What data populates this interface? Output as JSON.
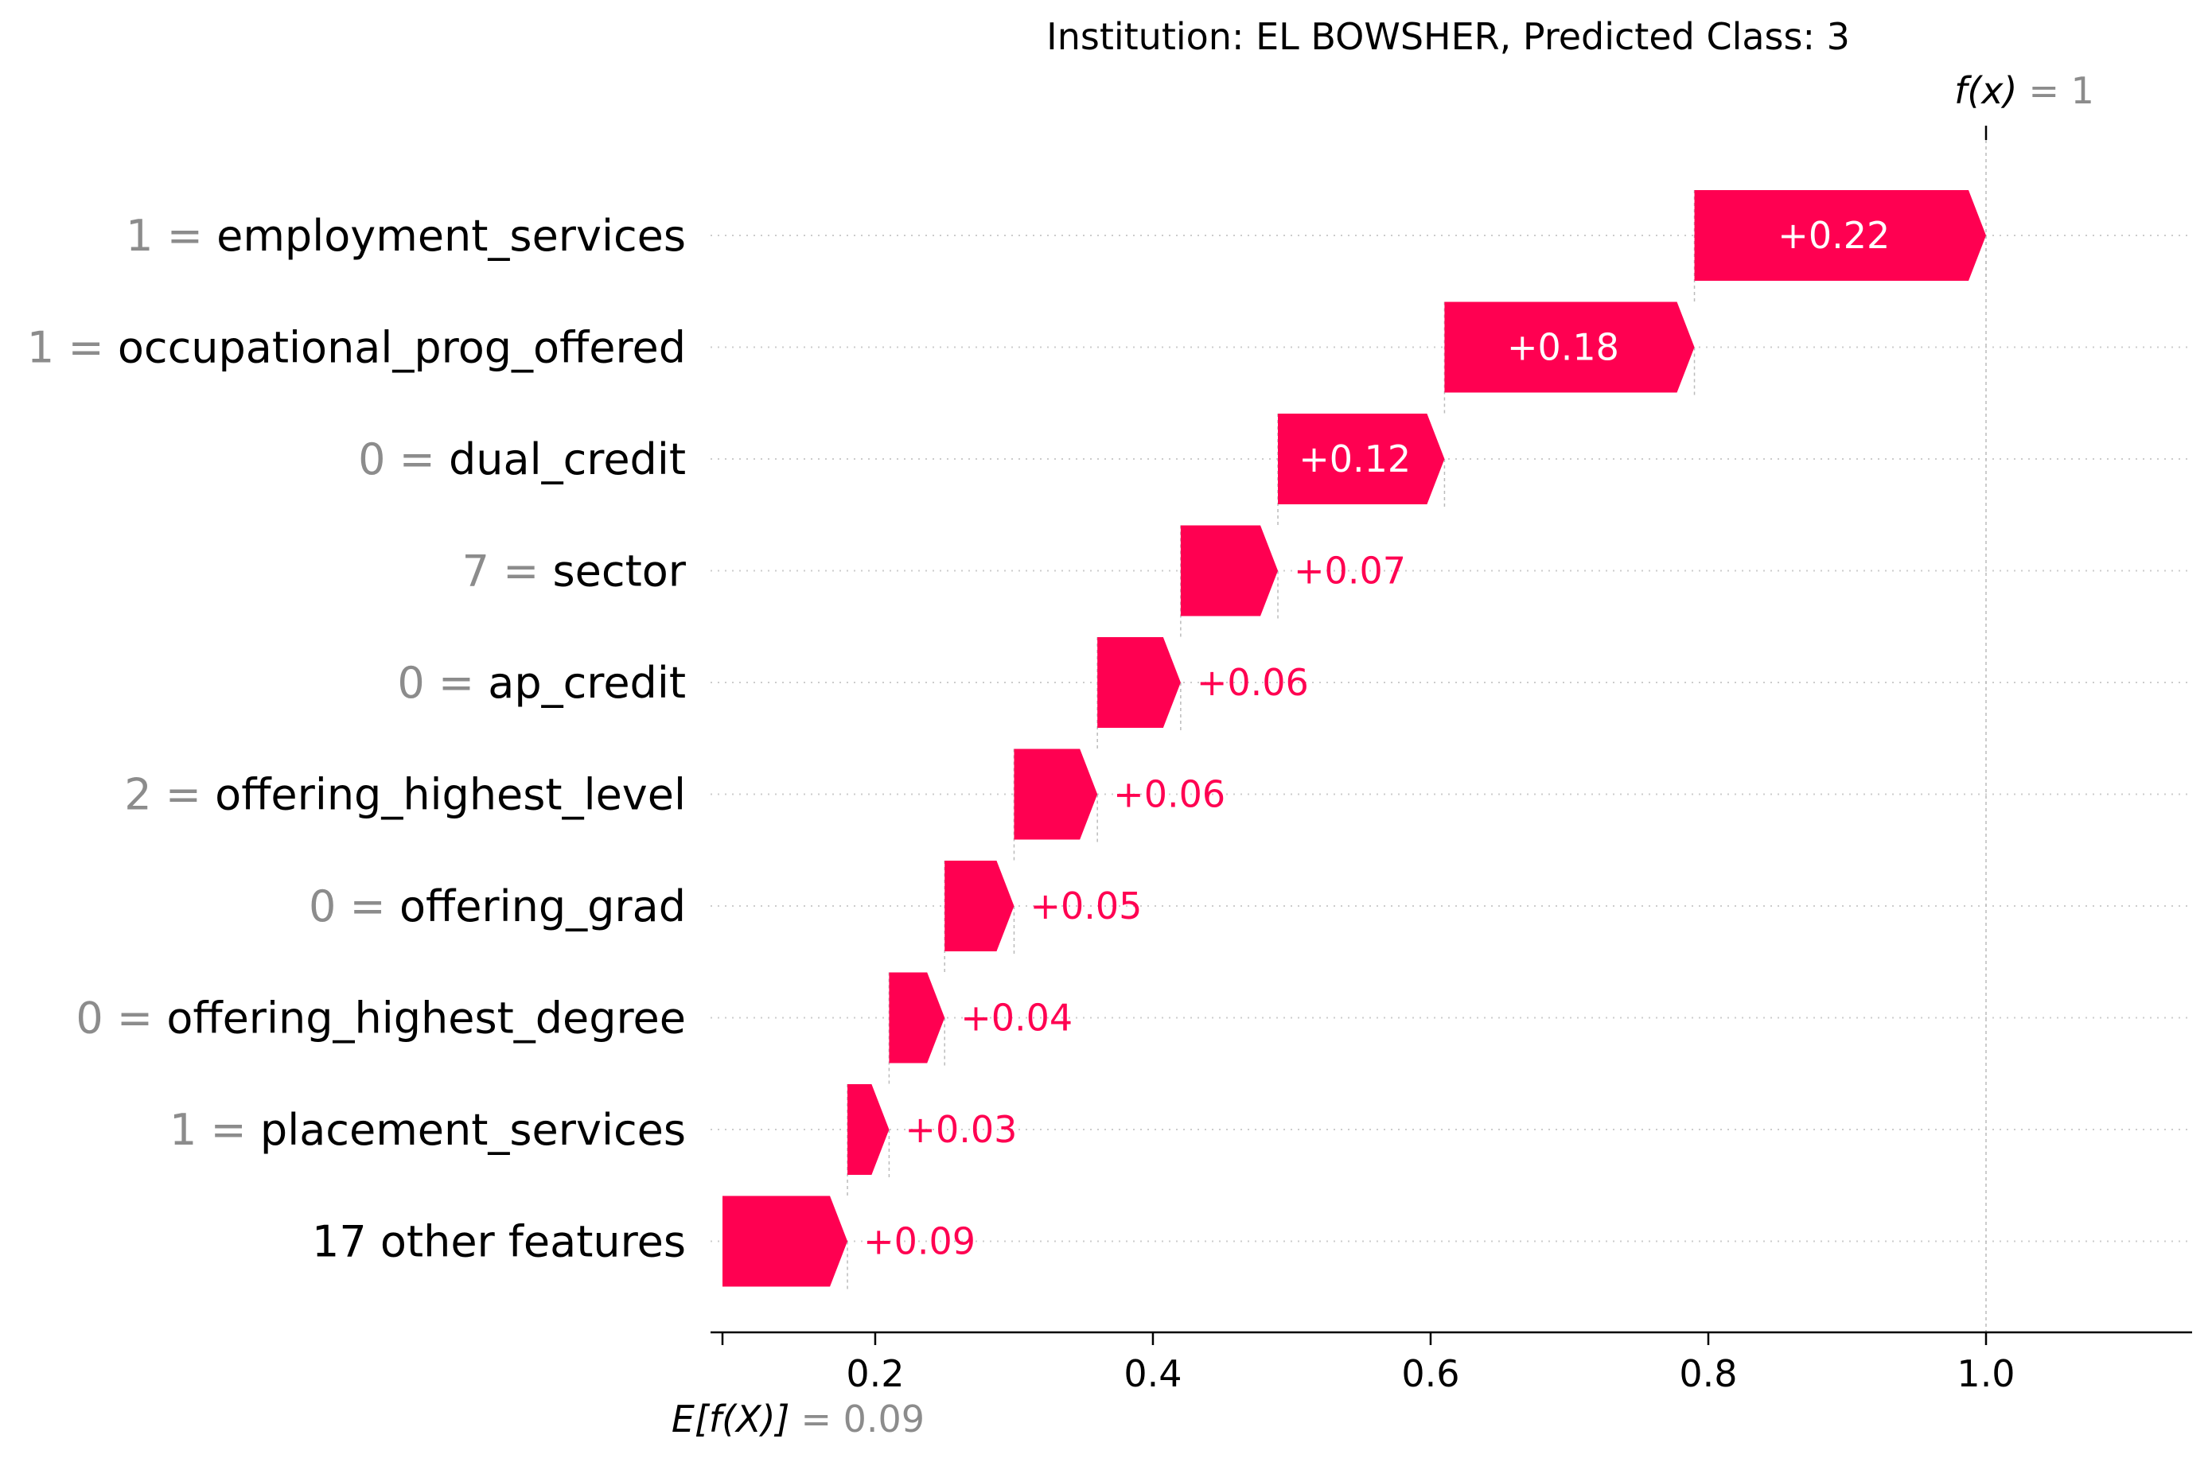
{
  "chart_data": {
    "type": "waterfall",
    "title": "Institution: EL BOWSHER, Predicted Class: 3",
    "base_value": 0.09,
    "output_value": 1,
    "base_label": "E[f(X)]",
    "base_value_text": "= 0.09",
    "output_label": "f(x)",
    "output_value_text": "= 1",
    "xlim": [
      0.08,
      1.15
    ],
    "x_ticks": [
      0.2,
      0.4,
      0.6,
      0.8,
      1.0
    ],
    "x_tick_labels": [
      "0.2",
      "0.4",
      "0.6",
      "0.8",
      "1.0"
    ],
    "positive_color": "#ff0051",
    "features": [
      {
        "value": "1",
        "name": "employment_services",
        "contribution": 0.22,
        "label": "+0.22"
      },
      {
        "value": "1",
        "name": "occupational_prog_offered",
        "contribution": 0.18,
        "label": "+0.18"
      },
      {
        "value": "0",
        "name": "dual_credit",
        "contribution": 0.12,
        "label": "+0.12"
      },
      {
        "value": "7",
        "name": "sector",
        "contribution": 0.07,
        "label": "+0.07"
      },
      {
        "value": "0",
        "name": "ap_credit",
        "contribution": 0.06,
        "label": "+0.06"
      },
      {
        "value": "2",
        "name": "offering_highest_level",
        "contribution": 0.06,
        "label": "+0.06"
      },
      {
        "value": "0",
        "name": "offering_grad",
        "contribution": 0.05,
        "label": "+0.05"
      },
      {
        "value": "0",
        "name": "offering_highest_degree",
        "contribution": 0.04,
        "label": "+0.04"
      },
      {
        "value": "1",
        "name": "placement_services",
        "contribution": 0.03,
        "label": "+0.03"
      },
      {
        "value": "",
        "name": "17 other features",
        "contribution": 0.09,
        "label": "+0.09"
      }
    ]
  }
}
